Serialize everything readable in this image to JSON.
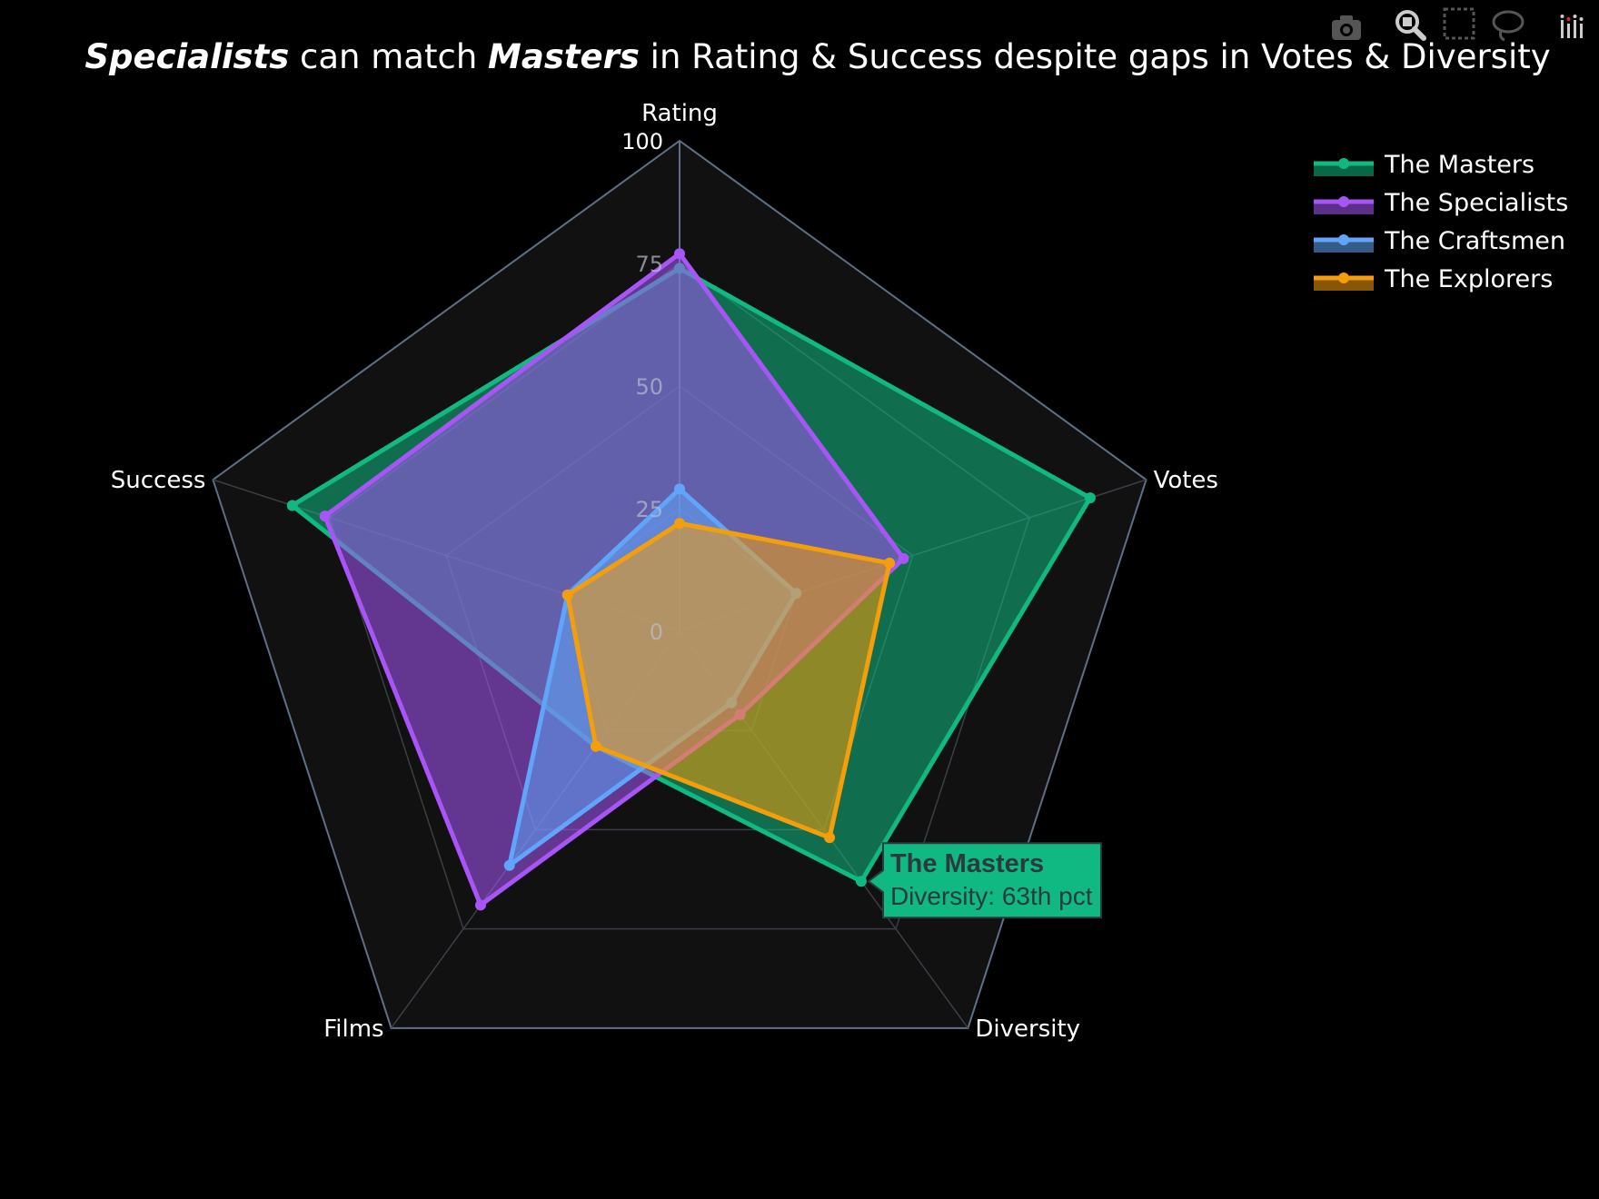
{
  "chart_data": {
    "type": "radar",
    "title": {
      "parts": [
        {
          "text": "Specialists",
          "emphasis": true
        },
        {
          "text": " can match ",
          "emphasis": false
        },
        {
          "text": "Masters",
          "emphasis": true
        },
        {
          "text": " in Rating & Success despite gaps in Votes & Diversity",
          "emphasis": false
        }
      ]
    },
    "axes": [
      "Rating",
      "Votes",
      "Diversity",
      "Films",
      "Success"
    ],
    "radial_range": [
      0,
      100
    ],
    "radial_ticks": [
      "0",
      "25",
      "50",
      "75",
      "100"
    ],
    "grid": true,
    "legend_position": "top-right",
    "series": [
      {
        "name": "The Masters",
        "color": "#10b981",
        "values": [
          74,
          88,
          63,
          29,
          83
        ]
      },
      {
        "name": "The Specialists",
        "color": "#a855f7",
        "values": [
          77,
          48,
          21,
          69,
          76
        ]
      },
      {
        "name": "The Craftsmen",
        "color": "#60a5fa",
        "values": [
          29,
          25,
          18,
          59,
          24
        ]
      },
      {
        "name": "The Explorers",
        "color": "#f59e0b",
        "values": [
          22,
          45,
          52,
          29,
          24
        ]
      }
    ],
    "hover": {
      "series": "The Masters",
      "title": "The Masters",
      "text": "Diversity: 63th pct"
    }
  },
  "toolbar": {
    "icons": [
      "camera-icon",
      "zoom-icon",
      "box-select-icon",
      "lasso-select-icon",
      "plotly-logo-icon"
    ]
  }
}
